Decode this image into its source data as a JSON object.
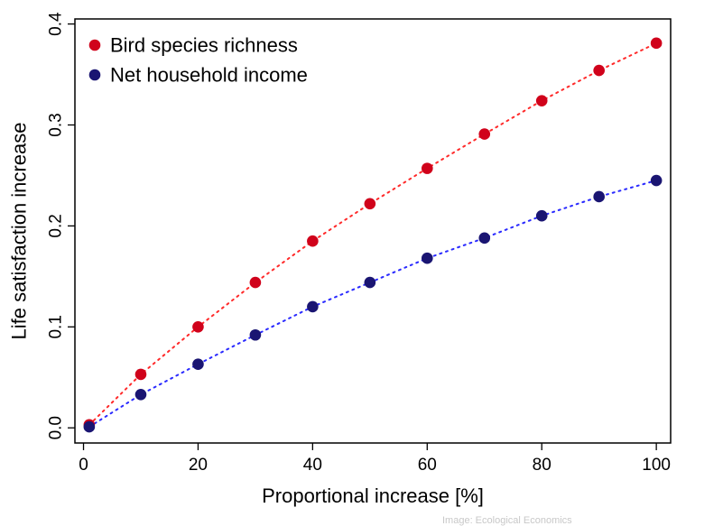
{
  "chart_data": {
    "type": "scatter",
    "x": [
      1,
      10,
      20,
      30,
      40,
      50,
      60,
      70,
      80,
      90,
      100
    ],
    "series": [
      {
        "name": "Bird species richness",
        "color": "#d0021b",
        "line_color": "#ff2a2a",
        "values": [
          0.003,
          0.053,
          0.1,
          0.144,
          0.185,
          0.222,
          0.257,
          0.291,
          0.324,
          0.354,
          0.381
        ]
      },
      {
        "name": "Net household income",
        "color": "#1a1572",
        "line_color": "#2a2aff",
        "values": [
          0.001,
          0.033,
          0.063,
          0.092,
          0.12,
          0.144,
          0.168,
          0.188,
          0.21,
          0.229,
          0.245
        ]
      }
    ],
    "xlabel": "Proportional increase [%]",
    "ylabel": "Life satisfaction increase",
    "xlim": [
      -1.5,
      102.5
    ],
    "ylim": [
      -0.015,
      0.405
    ],
    "xticks": [
      0,
      20,
      40,
      60,
      80,
      100
    ],
    "xtick_labels": [
      "0",
      "20",
      "40",
      "60",
      "80",
      "100"
    ],
    "yticks": [
      0.0,
      0.1,
      0.2,
      0.3,
      0.4
    ],
    "ytick_labels": [
      "0.0",
      "0.1",
      "0.2",
      "0.3",
      "0.4"
    ],
    "grid": false,
    "legend": "top-left",
    "credit": "Image: Ecological Economics"
  }
}
